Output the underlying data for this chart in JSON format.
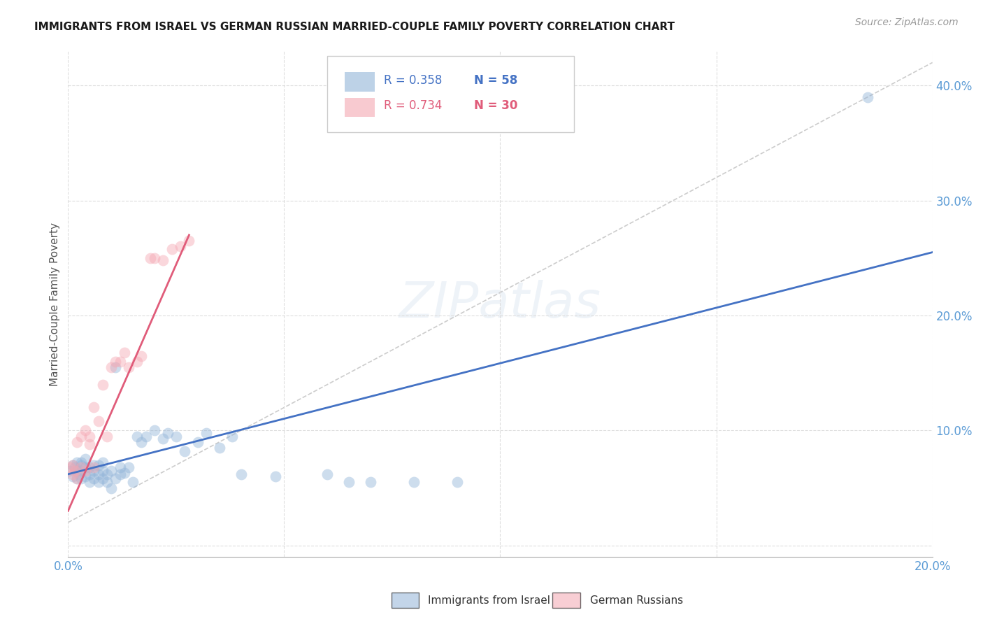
{
  "title": "IMMIGRANTS FROM ISRAEL VS GERMAN RUSSIAN MARRIED-COUPLE FAMILY POVERTY CORRELATION CHART",
  "source": "Source: ZipAtlas.com",
  "ylabel": "Married-Couple Family Poverty",
  "legend_label1": "Immigrants from Israel",
  "legend_label2": "German Russians",
  "color_blue": "#92B4D8",
  "color_pink": "#F4A7B2",
  "color_blue_line": "#4472C4",
  "color_pink_line": "#E05C7A",
  "color_diag": "#C0C0C0",
  "color_axis_label": "#5B9BD5",
  "xlim": [
    0.0,
    0.2
  ],
  "ylim": [
    -0.01,
    0.43
  ],
  "israel_x": [
    0.0005,
    0.001,
    0.001,
    0.0015,
    0.002,
    0.002,
    0.002,
    0.0025,
    0.003,
    0.003,
    0.003,
    0.003,
    0.004,
    0.004,
    0.004,
    0.005,
    0.005,
    0.005,
    0.006,
    0.006,
    0.006,
    0.007,
    0.007,
    0.007,
    0.008,
    0.008,
    0.008,
    0.009,
    0.009,
    0.01,
    0.01,
    0.011,
    0.011,
    0.012,
    0.012,
    0.013,
    0.014,
    0.015,
    0.016,
    0.017,
    0.018,
    0.02,
    0.022,
    0.023,
    0.025,
    0.027,
    0.03,
    0.032,
    0.035,
    0.038,
    0.04,
    0.048,
    0.06,
    0.065,
    0.07,
    0.08,
    0.09,
    0.185
  ],
  "israel_y": [
    0.065,
    0.07,
    0.06,
    0.068,
    0.058,
    0.065,
    0.072,
    0.062,
    0.058,
    0.065,
    0.07,
    0.072,
    0.06,
    0.068,
    0.075,
    0.055,
    0.062,
    0.068,
    0.058,
    0.065,
    0.07,
    0.055,
    0.062,
    0.07,
    0.058,
    0.065,
    0.072,
    0.055,
    0.062,
    0.05,
    0.065,
    0.058,
    0.155,
    0.062,
    0.068,
    0.063,
    0.068,
    0.055,
    0.095,
    0.09,
    0.095,
    0.1,
    0.093,
    0.098,
    0.095,
    0.082,
    0.09,
    0.098,
    0.085,
    0.095,
    0.062,
    0.06,
    0.062,
    0.055,
    0.055,
    0.055,
    0.055,
    0.39
  ],
  "german_x": [
    0.0005,
    0.001,
    0.001,
    0.0015,
    0.002,
    0.002,
    0.003,
    0.003,
    0.004,
    0.004,
    0.005,
    0.005,
    0.006,
    0.006,
    0.007,
    0.008,
    0.009,
    0.01,
    0.011,
    0.012,
    0.013,
    0.014,
    0.016,
    0.017,
    0.019,
    0.02,
    0.022,
    0.024,
    0.026,
    0.028
  ],
  "german_y": [
    0.068,
    0.062,
    0.07,
    0.065,
    0.058,
    0.09,
    0.068,
    0.095,
    0.065,
    0.1,
    0.088,
    0.095,
    0.068,
    0.12,
    0.108,
    0.14,
    0.095,
    0.155,
    0.16,
    0.16,
    0.168,
    0.155,
    0.16,
    0.165,
    0.25,
    0.25,
    0.248,
    0.258,
    0.26,
    0.265
  ],
  "blue_line_x": [
    0.0,
    0.2
  ],
  "blue_line_y": [
    0.062,
    0.255
  ],
  "pink_line_x": [
    0.0,
    0.028
  ],
  "pink_line_y": [
    0.03,
    0.27
  ]
}
